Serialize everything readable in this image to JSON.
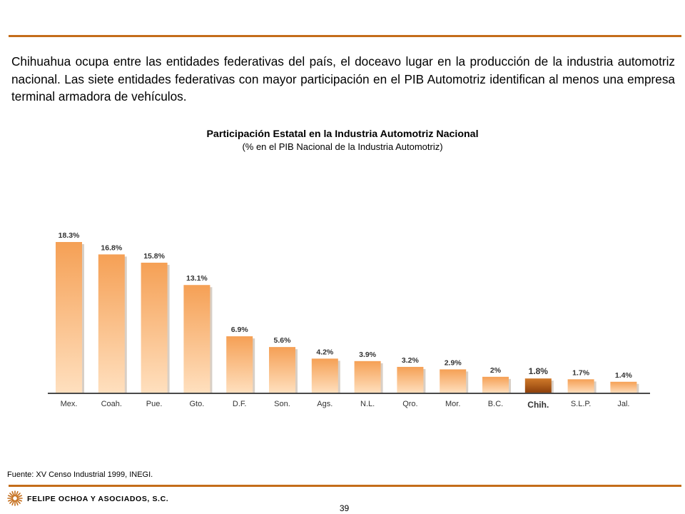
{
  "intro_text": "Chihuahua ocupa entre las entidades federativas del país, el doceavo lugar en la producción de la industria automotriz nacional. Las siete entidades federativas con mayor participación en el PIB Automotriz identifican al menos una empresa terminal armadora de vehículos.",
  "chart_data": {
    "type": "bar",
    "title": "Participación Estatal en la Industria Automotriz Nacional",
    "subtitle": "(% en el PIB Nacional de la Industria Automotriz)",
    "categories": [
      "Mex.",
      "Coah.",
      "Pue.",
      "Gto.",
      "D.F.",
      "Son.",
      "Ags.",
      "N.L.",
      "Qro.",
      "Mor.",
      "B.C.",
      "Chih.",
      "S.L.P.",
      "Jal."
    ],
    "values": [
      18.3,
      16.8,
      15.8,
      13.1,
      6.9,
      5.6,
      4.2,
      3.9,
      3.2,
      2.9,
      2,
      1.8,
      1.7,
      1.4
    ],
    "value_labels": [
      "18.3%",
      "16.8%",
      "15.8%",
      "13.1%",
      "6.9%",
      "5.6%",
      "4.2%",
      "3.9%",
      "3.2%",
      "2.9%",
      "2%",
      "1.8%",
      "1.7%",
      "1.4%"
    ],
    "highlight": "Chih.",
    "xlabel": "",
    "ylabel": "",
    "ylim": [
      0,
      18.3
    ],
    "grid": false,
    "legend": "none",
    "colors": {
      "bar_light": "#ffe0bf",
      "bar_dark": "#f5a055",
      "highlight_light": "#d07a2a",
      "highlight_dark": "#8a3d0a",
      "axis": "#4a4a4a"
    }
  },
  "source_text": "Fuente: XV Censo Industrial 1999, INEGI.",
  "footer": {
    "logo_icon": "sunburst-logo-icon",
    "company_name": "FELIPE OCHOA Y ASOCIADOS, S.C.",
    "page_number": "39",
    "rule_color": "#c46d1a"
  }
}
